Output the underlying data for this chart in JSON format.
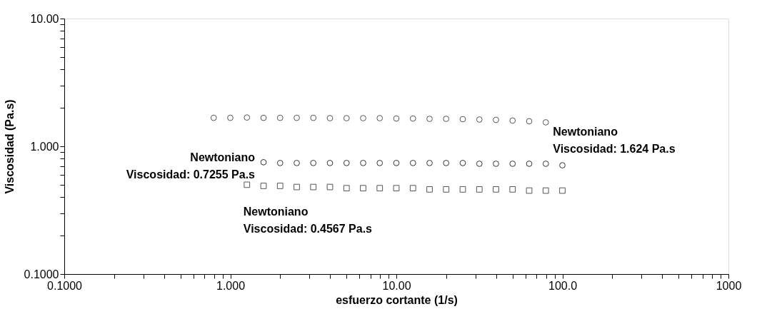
{
  "chart_data": {
    "type": "scatter",
    "xlabel": "esfuerzo cortante (1/s)",
    "ylabel": "Viscosidad (Pa.s)",
    "log": "xy",
    "grid": false,
    "xlim": [
      0.1,
      1000
    ],
    "ylim": [
      0.1,
      10
    ],
    "xticks": [
      {
        "value": 0.1,
        "label": "0.1000"
      },
      {
        "value": 0.2,
        "label": null
      },
      {
        "value": 0.3,
        "label": null
      },
      {
        "value": 0.4,
        "label": null
      },
      {
        "value": 0.5,
        "label": null
      },
      {
        "value": 0.6,
        "label": null
      },
      {
        "value": 0.7,
        "label": null
      },
      {
        "value": 0.8,
        "label": null
      },
      {
        "value": 0.9,
        "label": null
      },
      {
        "value": 1,
        "label": "1.000"
      },
      {
        "value": 2,
        "label": null
      },
      {
        "value": 3,
        "label": null
      },
      {
        "value": 4,
        "label": null
      },
      {
        "value": 5,
        "label": null
      },
      {
        "value": 6,
        "label": null
      },
      {
        "value": 7,
        "label": null
      },
      {
        "value": 8,
        "label": null
      },
      {
        "value": 9,
        "label": null
      },
      {
        "value": 10,
        "label": "10.00"
      },
      {
        "value": 20,
        "label": null
      },
      {
        "value": 30,
        "label": null
      },
      {
        "value": 40,
        "label": null
      },
      {
        "value": 50,
        "label": null
      },
      {
        "value": 60,
        "label": null
      },
      {
        "value": 70,
        "label": null
      },
      {
        "value": 80,
        "label": null
      },
      {
        "value": 90,
        "label": null
      },
      {
        "value": 100,
        "label": "100.0"
      },
      {
        "value": 200,
        "label": null
      },
      {
        "value": 300,
        "label": null
      },
      {
        "value": 400,
        "label": null
      },
      {
        "value": 500,
        "label": null
      },
      {
        "value": 600,
        "label": null
      },
      {
        "value": 700,
        "label": null
      },
      {
        "value": 800,
        "label": null
      },
      {
        "value": 900,
        "label": null
      },
      1000
    ],
    "yticks": [
      {
        "value": 0.1,
        "label": "0.1000"
      },
      {
        "value": 0.2,
        "label": null
      },
      {
        "value": 0.3,
        "label": null
      },
      {
        "value": 0.4,
        "label": null
      },
      {
        "value": 0.5,
        "label": null
      },
      {
        "value": 0.6,
        "label": null
      },
      {
        "value": 0.7,
        "label": null
      },
      {
        "value": 0.8,
        "label": null
      },
      {
        "value": 0.9,
        "label": null
      },
      {
        "value": 1,
        "label": "1.000"
      },
      {
        "value": 2,
        "label": null
      },
      {
        "value": 3,
        "label": null
      },
      {
        "value": 4,
        "label": null
      },
      {
        "value": 5,
        "label": null
      },
      {
        "value": 6,
        "label": null
      },
      {
        "value": 7,
        "label": null
      },
      {
        "value": 8,
        "label": null
      },
      {
        "value": 9,
        "label": null
      },
      {
        "value": 10,
        "label": "10.00"
      }
    ],
    "series": [
      {
        "color": "#555555",
        "marker": "circle",
        "x": [
          0.794,
          1,
          1.259,
          1.585,
          1.995,
          2.512,
          3.162,
          3.981,
          5.012,
          6.31,
          7.943,
          10,
          12.59,
          15.85,
          19.95,
          25.12,
          31.62,
          39.81,
          50.12,
          63.1,
          79.43
        ],
        "values": [
          1.67,
          1.67,
          1.68,
          1.67,
          1.67,
          1.67,
          1.67,
          1.66,
          1.66,
          1.66,
          1.66,
          1.65,
          1.65,
          1.64,
          1.64,
          1.63,
          1.62,
          1.61,
          1.59,
          1.57,
          1.54
        ]
      },
      {
        "color": "#333333",
        "marker": "circle",
        "x": [
          1.585,
          1.995,
          2.512,
          3.162,
          3.981,
          5.012,
          6.31,
          7.943,
          10,
          12.59,
          15.85,
          19.95,
          25.12,
          31.62,
          39.81,
          50.12,
          63.1,
          79.43,
          100
        ],
        "values": [
          0.75,
          0.74,
          0.74,
          0.74,
          0.74,
          0.74,
          0.74,
          0.74,
          0.74,
          0.74,
          0.74,
          0.74,
          0.74,
          0.73,
          0.73,
          0.73,
          0.73,
          0.73,
          0.71
        ]
      },
      {
        "color": "#555555",
        "marker": "square",
        "x": [
          1.259,
          1.585,
          1.995,
          2.512,
          3.162,
          3.981,
          5.012,
          6.31,
          7.943,
          10,
          12.59,
          15.85,
          19.95,
          25.12,
          31.62,
          39.81,
          50.12,
          63.1,
          79.43,
          100
        ],
        "values": [
          0.5,
          0.49,
          0.49,
          0.48,
          0.48,
          0.48,
          0.47,
          0.47,
          0.47,
          0.47,
          0.47,
          0.46,
          0.46,
          0.46,
          0.46,
          0.46,
          0.46,
          0.45,
          0.45,
          0.45
        ]
      }
    ],
    "annotations": [
      "Newtoniano\nViscosidad: 1.624 Pa.s",
      "Newtoniano\nViscosidad: 0.7255 Pa.s",
      "Newtoniano\nViscosidad: 0.4567 Pa.s"
    ]
  }
}
